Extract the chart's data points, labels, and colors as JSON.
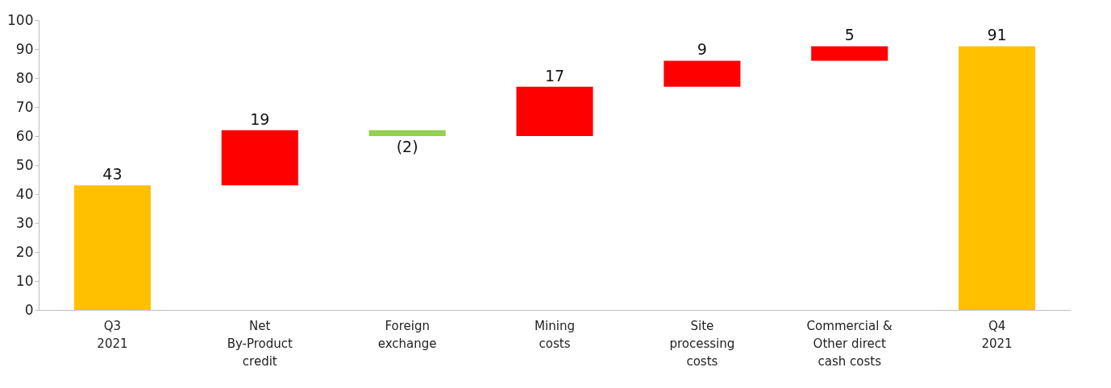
{
  "chart_data": {
    "type": "bar",
    "categories": [
      "Q3\n2021",
      "Net\nBy-Product\ncredit",
      "Foreign\nexchange",
      "Mining\ncosts",
      "Site\nprocessing\ncosts",
      "Commercial &\nOther direct\ncash costs",
      "Q4\n2021"
    ],
    "values": [
      43,
      19,
      -2,
      17,
      9,
      5,
      91
    ],
    "base": [
      0,
      43,
      62,
      60,
      77,
      86,
      0
    ],
    "colors": [
      "#ffc000",
      "#ff0000",
      "#92d050",
      "#ff0000",
      "#ff0000",
      "#ff0000",
      "#ffc000"
    ],
    "value_labels": [
      "43",
      "19",
      "(2)",
      "17",
      "9",
      "5",
      "91"
    ],
    "ylim": [
      0,
      100
    ],
    "yticks": [
      0,
      10,
      20,
      30,
      40,
      50,
      60,
      70,
      80,
      90,
      100
    ],
    "grid": false
  }
}
